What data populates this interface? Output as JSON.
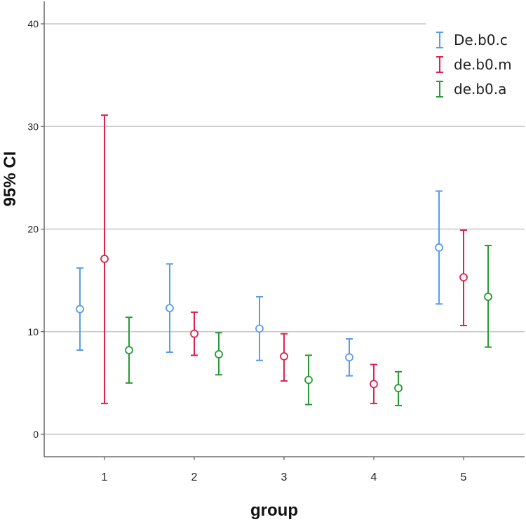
{
  "chart_data": {
    "type": "errorbar",
    "title": "",
    "xlabel": "group",
    "ylabel": "95% CI",
    "categories": [
      "1",
      "2",
      "3",
      "4",
      "5"
    ],
    "ylim": [
      -2,
      44
    ],
    "yticks": [
      0,
      10,
      20,
      30,
      40
    ],
    "grid": "horizontal",
    "legend_position": "top-right",
    "series": [
      {
        "name": "De.b0.c",
        "color": "#5b9bea",
        "mean": [
          12.2,
          12.3,
          10.3,
          7.5,
          18.2
        ],
        "lower": [
          8.2,
          8.0,
          7.2,
          5.7,
          12.7
        ],
        "upper": [
          16.2,
          16.6,
          13.4,
          9.3,
          23.7
        ]
      },
      {
        "name": "de.b0.m",
        "color": "#e0204c",
        "mean": [
          17.1,
          9.8,
          7.6,
          4.9,
          15.3
        ],
        "lower": [
          3.0,
          7.7,
          5.2,
          3.0,
          10.6
        ],
        "upper": [
          31.1,
          11.9,
          9.8,
          6.8,
          19.9
        ]
      },
      {
        "name": "de.b0.a",
        "color": "#279b35",
        "mean": [
          8.2,
          7.8,
          5.3,
          4.5,
          13.4
        ],
        "lower": [
          5.0,
          5.8,
          2.9,
          2.8,
          8.5
        ],
        "upper": [
          11.4,
          9.9,
          7.7,
          6.1,
          18.4
        ]
      }
    ]
  }
}
